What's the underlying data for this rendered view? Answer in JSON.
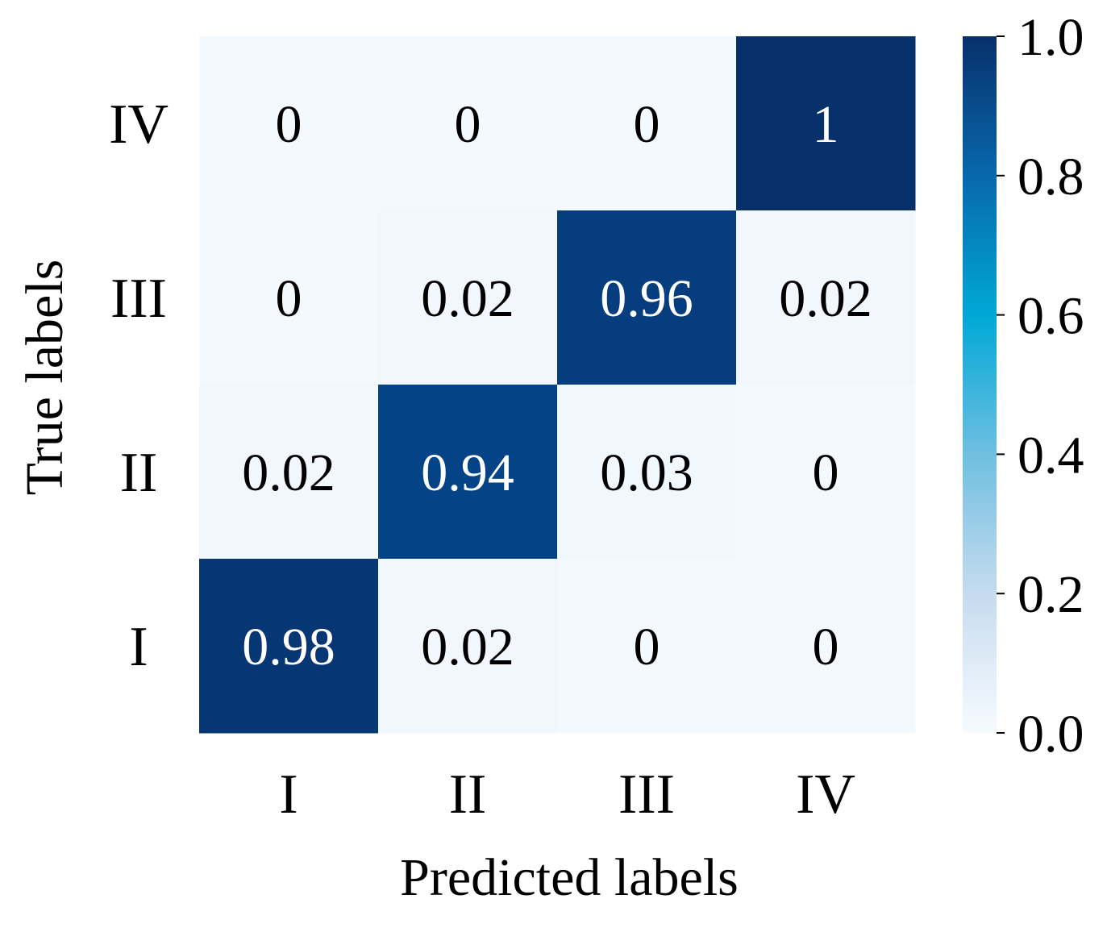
{
  "chart_data": {
    "type": "heatmap",
    "title": "",
    "xlabel": "Predicted labels",
    "ylabel": "True labels",
    "x_categories": [
      "I",
      "II",
      "III",
      "IV"
    ],
    "y_categories_top_to_bottom": [
      "IV",
      "III",
      "II",
      "I"
    ],
    "matrix_top_to_bottom": [
      [
        0,
        0,
        0,
        1
      ],
      [
        0,
        0.02,
        0.96,
        0.02
      ],
      [
        0.02,
        0.94,
        0.03,
        0
      ],
      [
        0.98,
        0.02,
        0,
        0
      ]
    ],
    "cell_labels_top_to_bottom": [
      [
        "0",
        "0",
        "0",
        "1"
      ],
      [
        "0",
        "0.02",
        "0.96",
        "0.02"
      ],
      [
        "0.02",
        "0.94",
        "0.03",
        "0"
      ],
      [
        "0.98",
        "0.02",
        "0",
        "0"
      ]
    ],
    "colorbar": {
      "range": [
        0,
        1
      ],
      "ticks": [
        0.0,
        0.2,
        0.4,
        0.6,
        0.8,
        1.0
      ],
      "tick_labels": [
        "0.0",
        "0.2",
        "0.4",
        "0.6",
        "0.8",
        "1.0"
      ],
      "colormap": "Blues"
    }
  },
  "colors": {
    "low": "#f4f9fe",
    "mid": "#00a8d6",
    "high": "#08306b",
    "text_dark": "#000000",
    "text_light": "#ffffff"
  }
}
